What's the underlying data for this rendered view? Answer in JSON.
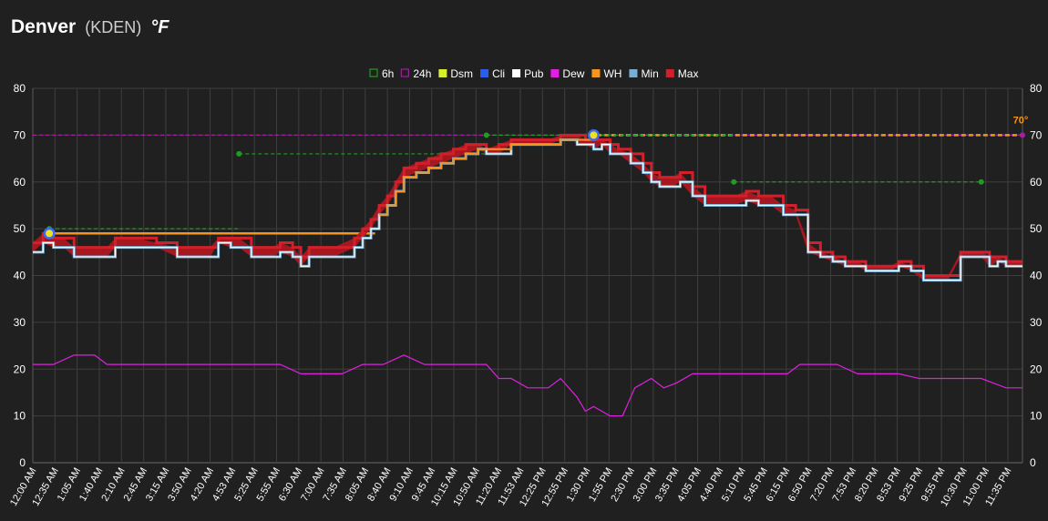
{
  "header": {
    "city": "Denver",
    "station": "(KDEN)",
    "units": "°F"
  },
  "legend": [
    {
      "label": "6h",
      "color": "#1f9d1f",
      "style": "hollow"
    },
    {
      "label": "24h",
      "color": "#a020a0",
      "style": "hollow"
    },
    {
      "label": "Dsm",
      "color": "#d8f02a",
      "style": "filled"
    },
    {
      "label": "Cli",
      "color": "#2a5cf0",
      "style": "filled"
    },
    {
      "label": "Pub",
      "color": "#ffffff",
      "style": "filled"
    },
    {
      "label": "Dew",
      "color": "#e020e0",
      "style": "filled"
    },
    {
      "label": "WH",
      "color": "#f7941d",
      "style": "filled"
    },
    {
      "label": "Min",
      "color": "#7aaed0",
      "style": "filled"
    },
    {
      "label": "Max",
      "color": "#d2202a",
      "style": "filled"
    }
  ],
  "chart_data": {
    "type": "line",
    "title": "",
    "xlabel": "",
    "ylabel": "",
    "ylim": [
      0,
      80
    ],
    "yticks": [
      0,
      10,
      20,
      30,
      40,
      50,
      60,
      70,
      80
    ],
    "x_tick_labels": [
      "12:00 AM",
      "12:35 AM",
      "1:05 AM",
      "1:40 AM",
      "2:10 AM",
      "2:45 AM",
      "3:15 AM",
      "3:50 AM",
      "4:20 AM",
      "4:53 AM",
      "5:25 AM",
      "5:55 AM",
      "6:30 AM",
      "7:00 AM",
      "7:35 AM",
      "8:05 AM",
      "8:40 AM",
      "9:10 AM",
      "9:45 AM",
      "10:15 AM",
      "10:50 AM",
      "11:20 AM",
      "11:53 AM",
      "12:25 PM",
      "12:55 PM",
      "1:30 PM",
      "1:55 PM",
      "2:30 PM",
      "3:00 PM",
      "3:35 PM",
      "4:05 PM",
      "4:40 PM",
      "5:10 PM",
      "5:45 PM",
      "6:15 PM",
      "6:50 PM",
      "7:20 PM",
      "7:53 PM",
      "8:20 PM",
      "8:53 PM",
      "9:25 PM",
      "9:55 PM",
      "10:30 PM",
      "11:00 PM",
      "11:35 PM"
    ],
    "grid": true,
    "legend_position": "top",
    "temp_series": {
      "hours": [
        0.0,
        0.25,
        0.5,
        0.75,
        1.0,
        1.5,
        1.8,
        2.0,
        2.5,
        3.0,
        3.5,
        3.8,
        4.0,
        4.3,
        4.5,
        4.8,
        5.0,
        5.3,
        5.8,
        6.0,
        6.3,
        6.5,
        6.7,
        7.0,
        7.3,
        7.8,
        8.0,
        8.2,
        8.4,
        8.6,
        8.8,
        9.0,
        9.3,
        9.6,
        9.9,
        10.2,
        10.5,
        10.8,
        11.0,
        11.3,
        11.6,
        11.9,
        12.2,
        12.5,
        12.8,
        13.0,
        13.1,
        13.2,
        13.4,
        13.6,
        13.8,
        14.0,
        14.2,
        14.5,
        14.8,
        15.0,
        15.2,
        15.5,
        15.7,
        16.0,
        16.3,
        16.6,
        16.8,
        17.0,
        17.3,
        17.6,
        17.9,
        18.2,
        18.5,
        18.8,
        19.1,
        19.4,
        19.7,
        20.0,
        20.2,
        20.4,
        20.6,
        20.8,
        21.0,
        21.3,
        21.6,
        21.9,
        22.2,
        22.5,
        22.8,
        23.0,
        23.2,
        23.4,
        23.6,
        23.8,
        24.0
      ],
      "min": [
        45,
        47,
        46,
        46,
        44,
        44,
        44,
        46,
        46,
        46,
        44,
        44,
        44,
        44,
        47,
        46,
        46,
        44,
        44,
        45,
        44,
        42,
        44,
        44,
        44,
        46,
        48,
        50,
        53,
        55,
        58,
        61,
        62,
        63,
        64,
        65,
        66,
        67,
        66,
        66,
        68,
        68,
        68,
        68,
        69,
        69,
        69,
        68,
        68,
        67,
        68,
        66,
        66,
        64,
        62,
        60,
        59,
        59,
        60,
        57,
        55,
        55,
        55,
        55,
        56,
        55,
        55,
        53,
        53,
        45,
        44,
        43,
        42,
        42,
        41,
        41,
        41,
        41,
        42,
        41,
        39,
        39,
        39,
        44,
        44,
        44,
        42,
        43,
        42,
        42,
        42
      ],
      "max": [
        47,
        49,
        48,
        48,
        46,
        46,
        46,
        48,
        48,
        47,
        46,
        46,
        46,
        46,
        48,
        48,
        48,
        46,
        46,
        47,
        46,
        44,
        46,
        46,
        46,
        48,
        50,
        52,
        55,
        57,
        60,
        63,
        64,
        65,
        66,
        67,
        68,
        68,
        67,
        68,
        69,
        69,
        69,
        69,
        70,
        70,
        70,
        70,
        69,
        69,
        69,
        68,
        67,
        66,
        64,
        62,
        61,
        61,
        62,
        59,
        57,
        57,
        57,
        57,
        58,
        57,
        57,
        55,
        54,
        47,
        45,
        44,
        43,
        43,
        42,
        42,
        42,
        42,
        43,
        42,
        40,
        40,
        40,
        45,
        45,
        45,
        44,
        44,
        43,
        43,
        43
      ]
    },
    "dew_series": {
      "hours": [
        0.0,
        0.5,
        1.0,
        1.5,
        1.8,
        2.0,
        2.5,
        3.0,
        3.5,
        4.0,
        4.5,
        5.0,
        5.5,
        6.0,
        6.5,
        7.0,
        7.5,
        8.0,
        8.5,
        9.0,
        9.5,
        10.0,
        10.5,
        11.0,
        11.3,
        11.6,
        12.0,
        12.5,
        12.8,
        13.0,
        13.2,
        13.4,
        13.6,
        13.8,
        14.0,
        14.3,
        14.6,
        15.0,
        15.3,
        15.6,
        16.0,
        16.5,
        17.0,
        17.5,
        17.8,
        18.0,
        18.3,
        18.6,
        19.0,
        19.5,
        20.0,
        20.5,
        21.0,
        21.5,
        22.0,
        22.5,
        23.0,
        23.3,
        23.6,
        24.0
      ],
      "values": [
        21,
        21,
        23,
        23,
        21,
        21,
        21,
        21,
        21,
        21,
        21,
        21,
        21,
        21,
        19,
        19,
        19,
        21,
        21,
        23,
        21,
        21,
        21,
        21,
        18,
        18,
        16,
        16,
        18,
        16,
        14,
        11,
        12,
        11,
        10,
        10,
        16,
        18,
        16,
        17,
        19,
        19,
        19,
        19,
        19,
        19,
        19,
        21,
        21,
        21,
        19,
        19,
        19,
        18,
        18,
        18,
        18,
        17,
        16,
        16
      ]
    },
    "reference_lines": [
      {
        "name": "24h",
        "value": 70,
        "from_hour": 0,
        "to_hour": 24,
        "color": "#a020a0"
      },
      {
        "name": "WH",
        "value": 49,
        "from_hour": 0.4,
        "to_hour": 8.3,
        "color": "#f7941d"
      },
      {
        "name": "WH",
        "value": 70,
        "from_hour": 13.5,
        "to_hour": 24,
        "color": "#f7941d"
      },
      {
        "name": "6h",
        "value": 50,
        "from_hour": 0.4,
        "to_hour": 5.0,
        "color": "#1f9d1f"
      },
      {
        "name": "6h",
        "value": 66,
        "from_hour": 5.0,
        "to_hour": 11.0,
        "color": "#1f9d1f"
      },
      {
        "name": "6h",
        "value": 70,
        "from_hour": 11.0,
        "to_hour": 17.0,
        "color": "#1f9d1f"
      },
      {
        "name": "6h",
        "value": 60,
        "from_hour": 17.0,
        "to_hour": 23.0,
        "color": "#1f9d1f"
      }
    ],
    "markers": [
      {
        "hour": 0.4,
        "value": 49,
        "fill": "#f0e020",
        "ring": "#3a6cf0"
      },
      {
        "hour": 13.6,
        "value": 70,
        "fill": "#f0e020",
        "ring": "#3a6cf0"
      }
    ],
    "annotation": {
      "text": "70°",
      "hour": 24,
      "value": 70
    }
  }
}
